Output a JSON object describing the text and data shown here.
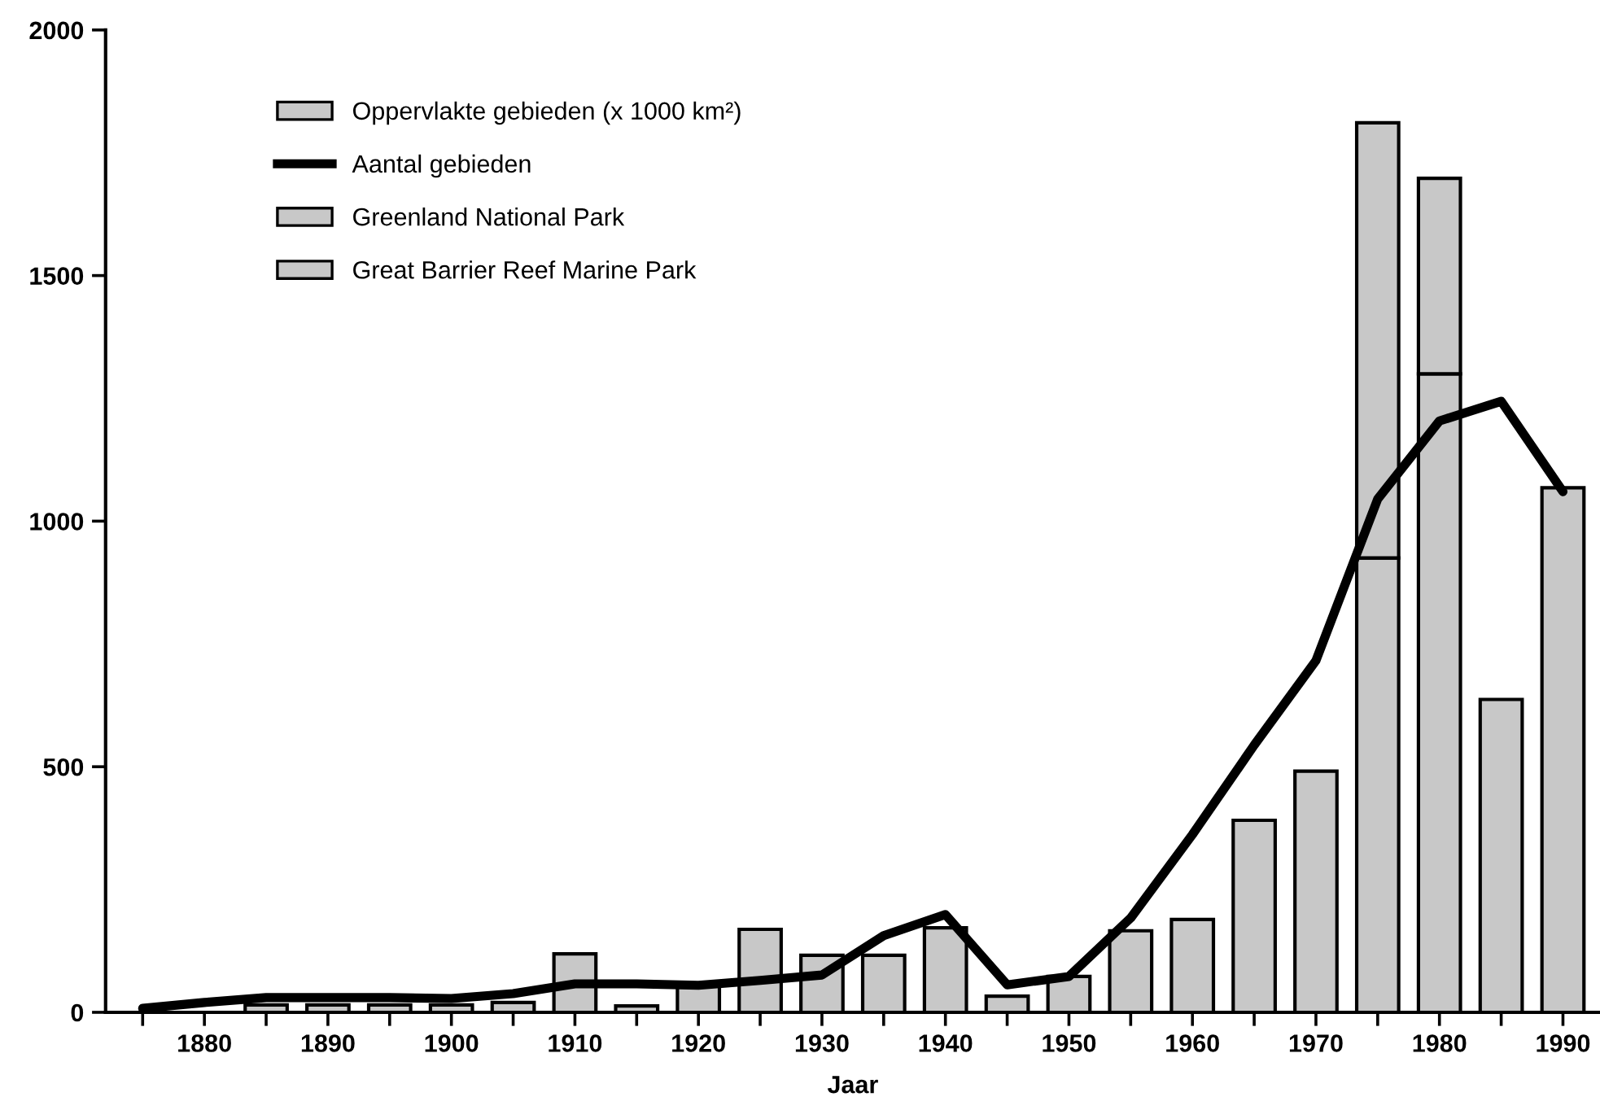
{
  "chart_data": {
    "type": "bar",
    "stacked": true,
    "xlabel": "Jaar",
    "x": [
      1875,
      1880,
      1885,
      1890,
      1895,
      1900,
      1905,
      1910,
      1915,
      1920,
      1925,
      1930,
      1935,
      1940,
      1945,
      1950,
      1955,
      1960,
      1965,
      1970,
      1975,
      1980,
      1985,
      1990
    ],
    "series": [
      {
        "name": "Oppervlakte gebieden (x 1000 km²)",
        "color": "#c8c8c8",
        "values": [
          0,
          0,
          15,
          15,
          15,
          15,
          20,
          119,
          13,
          53,
          169,
          116,
          116,
          172,
          33,
          73,
          166,
          189,
          391,
          491,
          925,
          1300,
          637,
          1068
        ]
      },
      {
        "name": "Aantal gebieden",
        "type": "line",
        "color": "#000000",
        "values": [
          8,
          20,
          30,
          30,
          30,
          28,
          38,
          58,
          58,
          55,
          65,
          76,
          156,
          199,
          56,
          73,
          192,
          362,
          544,
          716,
          1045,
          1204,
          1244,
          1060
        ]
      },
      {
        "name": "Greenland National Park",
        "color": "#c8c8c8",
        "values": [
          0,
          0,
          0,
          0,
          0,
          0,
          0,
          0,
          0,
          0,
          0,
          0,
          0,
          0,
          0,
          0,
          0,
          0,
          0,
          0,
          886,
          0,
          0,
          0
        ]
      },
      {
        "name": "Great Barrier Reef Marine Park",
        "color": "#c8c8c8",
        "values": [
          0,
          0,
          0,
          0,
          0,
          0,
          0,
          0,
          0,
          0,
          0,
          0,
          0,
          0,
          0,
          0,
          0,
          0,
          0,
          0,
          0,
          398,
          0,
          0
        ]
      }
    ],
    "xlim": [
      1872,
      1993
    ],
    "xticks": [
      {
        "value": 1875,
        "label": null
      },
      1880,
      {
        "value": 1885,
        "label": null
      },
      1890,
      {
        "value": 1895,
        "label": null
      },
      1900,
      {
        "value": 1905,
        "label": null
      },
      1910,
      {
        "value": 1915,
        "label": null
      },
      1920,
      {
        "value": 1925,
        "label": null
      },
      1930,
      {
        "value": 1935,
        "label": null
      },
      1940,
      {
        "value": 1945,
        "label": null
      },
      1950,
      {
        "value": 1955,
        "label": null
      },
      1960,
      {
        "value": 1965,
        "label": null
      },
      1970,
      {
        "value": 1975,
        "label": null
      },
      1980,
      {
        "value": 1985,
        "label": null
      },
      1990
    ],
    "ylim": [
      0,
      2000
    ],
    "yticks": [
      0,
      500,
      1000,
      1500,
      2000
    ],
    "grid": false,
    "legend": "top left"
  }
}
